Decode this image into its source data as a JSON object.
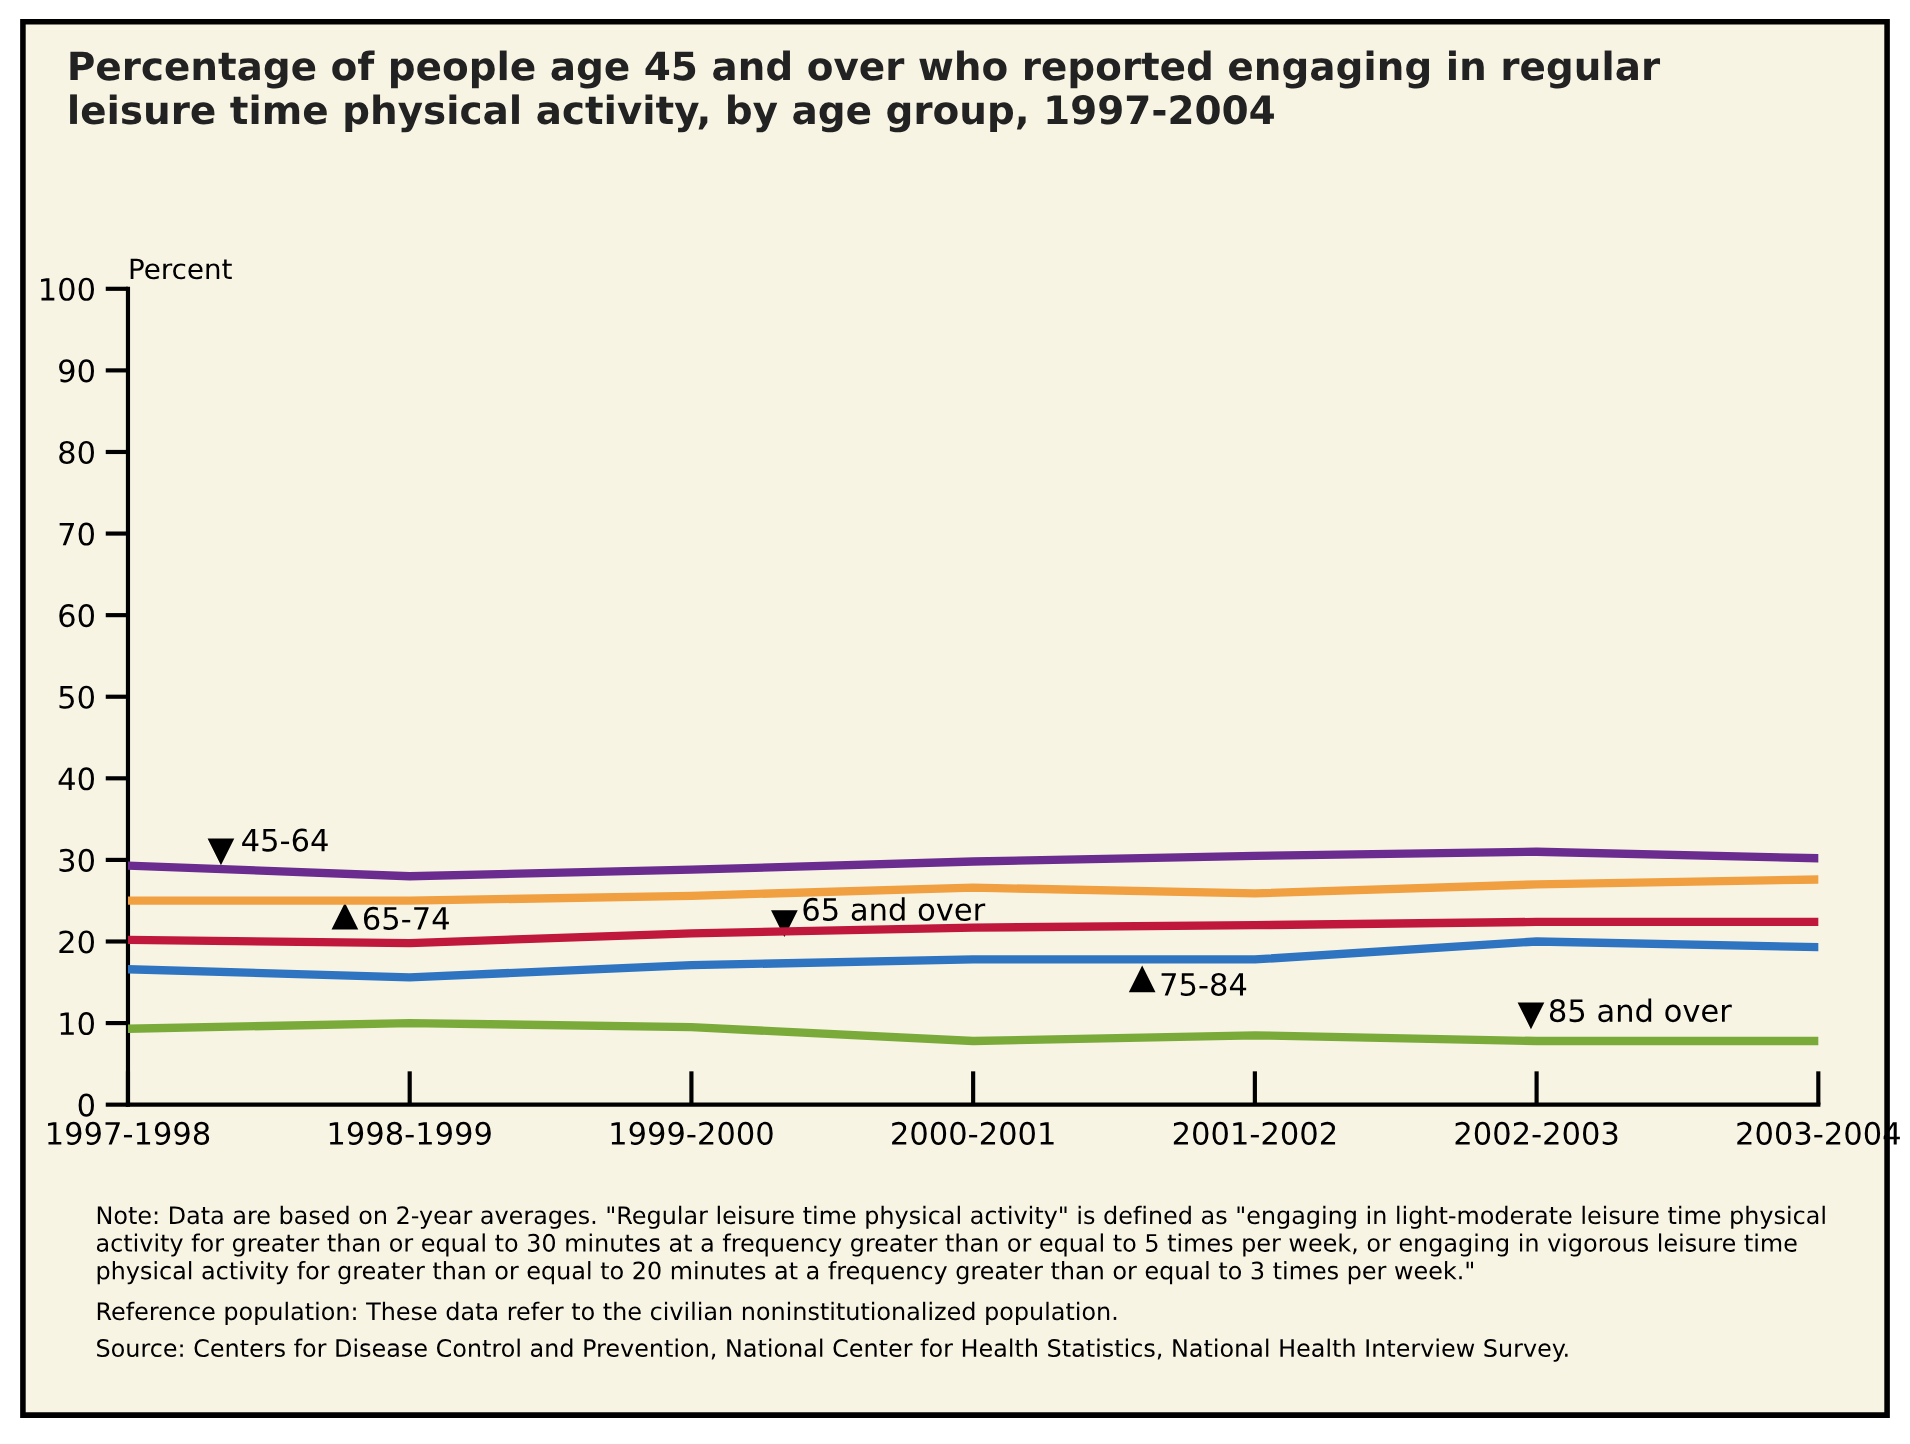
{
  "chart_data": {
    "type": "line",
    "title": "Percentage of people age 45 and over who reported engaging in regular\nleisure time physical activity, by age group, 1997-2004",
    "ylabel": "Percent",
    "categories": [
      "1997-1998",
      "1998-1999",
      "1999-2000",
      "2000-2001",
      "2001-2002",
      "2002-2003",
      "2003-2004"
    ],
    "series": [
      {
        "name": "45-64",
        "color": "#6a2c8e",
        "values": [
          29.3,
          28,
          28.8,
          29.8,
          30.5,
          31,
          30.2
        ]
      },
      {
        "name": "65-74",
        "color": "#f0a040",
        "values": [
          25,
          25,
          25.6,
          26.6,
          25.9,
          27,
          27.6
        ]
      },
      {
        "name": "65 and over",
        "color": "#c0173d",
        "values": [
          20.2,
          19.8,
          21,
          21.7,
          22,
          22.4,
          22.4
        ]
      },
      {
        "name": "75-84",
        "color": "#2f74c0",
        "values": [
          16.6,
          15.6,
          17.1,
          17.8,
          17.8,
          20,
          19.3
        ]
      },
      {
        "name": "85 and over",
        "color": "#7aab3a",
        "values": [
          9.3,
          10,
          9.5,
          7.8,
          8.5,
          7.8,
          7.8
        ]
      }
    ],
    "ylim": [
      0,
      100
    ],
    "yticks": [
      0,
      10,
      20,
      30,
      40,
      50,
      60,
      70,
      80,
      90,
      100
    ],
    "grid": false,
    "legend": false,
    "marker": "none",
    "line_style": "solid",
    "annotations": [
      "Note: Data are based on 2-year averages. \"Regular leisure time physical activity\" is defined as \"engaging in light-moderate leisure time physical\nactivity for greater than or equal to 30 minutes at a frequency greater than or equal to 5 times per week, or engaging in vigorous leisure time\nphysical activity for greater than or equal to 20 minutes at a frequency greater than or equal to 3 times per week.\"",
      "Reference population: These data refer to the civilian noninstitutionalized population.",
      "Source: Centers for Disease Control and Prevention, National Center for Health Statistics, National Health Interview Survey."
    ]
  }
}
